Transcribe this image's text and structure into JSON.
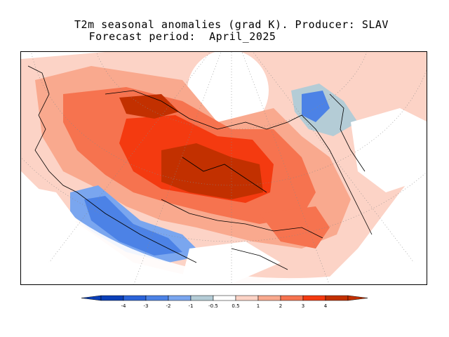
{
  "header": {
    "line1": "T2m seasonal anomalies (grad K). Producer: SLAV",
    "line2": "Forecast period:  April_2025"
  },
  "legend": {
    "bins": [
      {
        "label": "-4",
        "color": "#0b3fb8"
      },
      {
        "label": "-3",
        "color": "#2b63d9"
      },
      {
        "label": "-2",
        "color": "#4c82e6"
      },
      {
        "label": "-1",
        "color": "#7aa6ef"
      },
      {
        "label": "-0.5",
        "color": "#b4ccd6"
      },
      {
        "label": "0.5",
        "color": "#ffffff"
      },
      {
        "label": "1",
        "color": "#fcd3c6"
      },
      {
        "label": "2",
        "color": "#f9a98e"
      },
      {
        "label": "3",
        "color": "#f6734f"
      },
      {
        "label": "4",
        "color": "#f43a10"
      },
      {
        "label": "",
        "color": "#c23000"
      }
    ],
    "low_end_color": "#0b3fb8",
    "high_end_color": "#c23000"
  }
}
